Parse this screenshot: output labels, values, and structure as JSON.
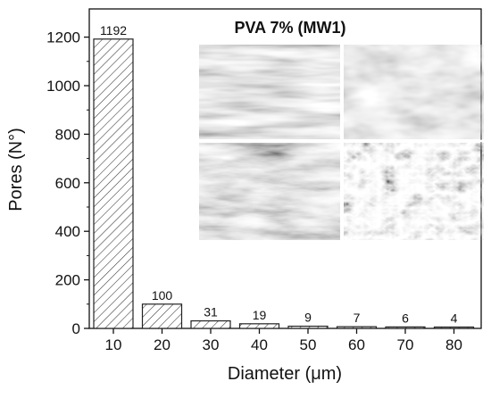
{
  "chart_data": {
    "type": "bar",
    "title": "",
    "xlabel": "Diameter (μm)",
    "ylabel": "Pores (N°)",
    "categories": [
      "10",
      "20",
      "30",
      "40",
      "50",
      "60",
      "70",
      "80"
    ],
    "values": [
      1192,
      100,
      31,
      19,
      9,
      7,
      6,
      4
    ],
    "data_labels": [
      "1192",
      "100",
      "31",
      "19",
      "9",
      "7",
      "6",
      "4"
    ],
    "y_ticks": [
      "0",
      "200",
      "400",
      "600",
      "800",
      "1000",
      "1200"
    ],
    "ylim": [
      0,
      1300
    ],
    "grid": false,
    "bar_fill": "diagonal-hatch",
    "inset": {
      "title": "PVA 7% (MW1)",
      "panels": [
        "micrograph-top-left",
        "micrograph-top-right",
        "micrograph-bottom-left",
        "micrograph-bottom-right"
      ]
    }
  },
  "colors": {
    "axis": "#111111",
    "bar_stroke": "#222222",
    "hatch": "#333333",
    "background": "#ffffff"
  }
}
